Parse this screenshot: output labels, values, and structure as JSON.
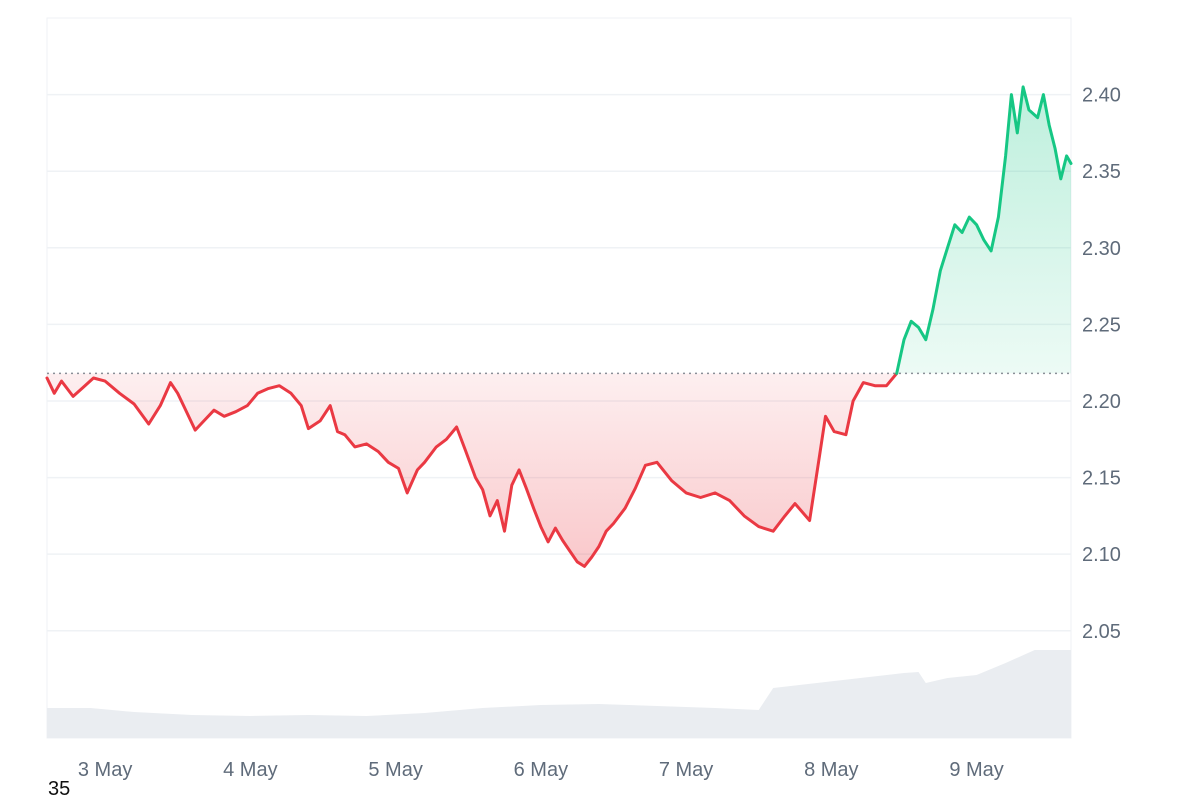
{
  "colors": {
    "up": "#16c784",
    "down": "#ea3943",
    "grid": "#eff2f5",
    "baseline": "#8a8f98",
    "volume": "#eaedf1",
    "tick_text": "#5f6b7a"
  },
  "corner_label": "35",
  "chart_data": {
    "type": "area",
    "baseline_value": 2.218,
    "ylim": [
      1.98,
      2.45
    ],
    "y_ticks": [
      2.05,
      2.1,
      2.15,
      2.2,
      2.25,
      2.3,
      2.35,
      2.4
    ],
    "y_tick_labels": [
      "2.05",
      "2.10",
      "2.15",
      "2.20",
      "2.25",
      "2.30",
      "2.35",
      "2.40"
    ],
    "xlim": [
      2.6,
      9.65
    ],
    "x_ticks": [
      3,
      4,
      5,
      6,
      7,
      8,
      9
    ],
    "x_tick_labels": [
      "3 May",
      "4 May",
      "5 May",
      "6 May",
      "7 May",
      "8 May",
      "9 May"
    ],
    "x_unit": "day of May",
    "series": [
      {
        "values": [
          [
            2.6,
            2.215
          ],
          [
            2.65,
            2.205
          ],
          [
            2.7,
            2.213
          ],
          [
            2.78,
            2.203
          ],
          [
            2.85,
            2.209
          ],
          [
            2.92,
            2.215
          ],
          [
            3.0,
            2.213
          ],
          [
            3.1,
            2.205
          ],
          [
            3.2,
            2.198
          ],
          [
            3.3,
            2.185
          ],
          [
            3.38,
            2.197
          ],
          [
            3.45,
            2.212
          ],
          [
            3.5,
            2.205
          ],
          [
            3.55,
            2.195
          ],
          [
            3.62,
            2.181
          ],
          [
            3.68,
            2.187
          ],
          [
            3.75,
            2.194
          ],
          [
            3.82,
            2.19
          ],
          [
            3.9,
            2.193
          ],
          [
            3.98,
            2.197
          ],
          [
            4.05,
            2.205
          ],
          [
            4.12,
            2.208
          ],
          [
            4.2,
            2.21
          ],
          [
            4.28,
            2.205
          ],
          [
            4.35,
            2.197
          ],
          [
            4.4,
            2.182
          ],
          [
            4.48,
            2.187
          ],
          [
            4.55,
            2.197
          ],
          [
            4.6,
            2.18
          ],
          [
            4.65,
            2.178
          ],
          [
            4.72,
            2.17
          ],
          [
            4.8,
            2.172
          ],
          [
            4.88,
            2.167
          ],
          [
            4.95,
            2.16
          ],
          [
            5.02,
            2.156
          ],
          [
            5.08,
            2.14
          ],
          [
            5.15,
            2.155
          ],
          [
            5.2,
            2.16
          ],
          [
            5.28,
            2.17
          ],
          [
            5.35,
            2.175
          ],
          [
            5.42,
            2.183
          ],
          [
            5.48,
            2.168
          ],
          [
            5.55,
            2.15
          ],
          [
            5.6,
            2.142
          ],
          [
            5.65,
            2.125
          ],
          [
            5.7,
            2.135
          ],
          [
            5.75,
            2.115
          ],
          [
            5.8,
            2.145
          ],
          [
            5.85,
            2.155
          ],
          [
            5.9,
            2.143
          ],
          [
            5.95,
            2.13
          ],
          [
            6.0,
            2.118
          ],
          [
            6.05,
            2.108
          ],
          [
            6.1,
            2.117
          ],
          [
            6.15,
            2.109
          ],
          [
            6.2,
            2.102
          ],
          [
            6.25,
            2.095
          ],
          [
            6.3,
            2.092
          ],
          [
            6.35,
            2.098
          ],
          [
            6.4,
            2.105
          ],
          [
            6.45,
            2.115
          ],
          [
            6.5,
            2.12
          ],
          [
            6.58,
            2.13
          ],
          [
            6.65,
            2.143
          ],
          [
            6.72,
            2.158
          ],
          [
            6.8,
            2.16
          ],
          [
            6.9,
            2.148
          ],
          [
            7.0,
            2.14
          ],
          [
            7.1,
            2.137
          ],
          [
            7.2,
            2.14
          ],
          [
            7.3,
            2.135
          ],
          [
            7.4,
            2.125
          ],
          [
            7.5,
            2.118
          ],
          [
            7.6,
            2.115
          ],
          [
            7.68,
            2.125
          ],
          [
            7.75,
            2.133
          ],
          [
            7.85,
            2.122
          ],
          [
            7.92,
            2.165
          ],
          [
            7.96,
            2.19
          ],
          [
            8.02,
            2.18
          ],
          [
            8.1,
            2.178
          ],
          [
            8.15,
            2.2
          ],
          [
            8.22,
            2.212
          ],
          [
            8.3,
            2.21
          ],
          [
            8.38,
            2.21
          ],
          [
            8.45,
            2.218
          ],
          [
            8.5,
            2.24
          ],
          [
            8.55,
            2.252
          ],
          [
            8.6,
            2.248
          ],
          [
            8.65,
            2.24
          ],
          [
            8.7,
            2.26
          ],
          [
            8.75,
            2.285
          ],
          [
            8.8,
            2.3
          ],
          [
            8.85,
            2.315
          ],
          [
            8.9,
            2.31
          ],
          [
            8.95,
            2.32
          ],
          [
            9.0,
            2.315
          ],
          [
            9.05,
            2.305
          ],
          [
            9.1,
            2.298
          ],
          [
            9.15,
            2.32
          ],
          [
            9.2,
            2.36
          ],
          [
            9.24,
            2.4
          ],
          [
            9.28,
            2.375
          ],
          [
            9.32,
            2.405
          ],
          [
            9.36,
            2.39
          ],
          [
            9.42,
            2.385
          ],
          [
            9.46,
            2.4
          ],
          [
            9.5,
            2.38
          ],
          [
            9.54,
            2.365
          ],
          [
            9.58,
            2.345
          ],
          [
            9.62,
            2.36
          ],
          [
            9.65,
            2.355
          ]
        ]
      }
    ],
    "volume": {
      "values": [
        [
          2.6,
          0.3
        ],
        [
          2.9,
          0.3
        ],
        [
          3.2,
          0.26
        ],
        [
          3.6,
          0.23
        ],
        [
          4.0,
          0.22
        ],
        [
          4.4,
          0.23
        ],
        [
          4.8,
          0.22
        ],
        [
          5.2,
          0.25
        ],
        [
          5.6,
          0.3
        ],
        [
          6.0,
          0.33
        ],
        [
          6.4,
          0.34
        ],
        [
          6.8,
          0.32
        ],
        [
          7.2,
          0.3
        ],
        [
          7.5,
          0.28
        ],
        [
          7.6,
          0.5
        ],
        [
          7.9,
          0.55
        ],
        [
          8.2,
          0.6
        ],
        [
          8.5,
          0.65
        ],
        [
          8.6,
          0.66
        ],
        [
          8.65,
          0.55
        ],
        [
          8.8,
          0.6
        ],
        [
          9.0,
          0.63
        ],
        [
          9.2,
          0.75
        ],
        [
          9.4,
          0.88
        ],
        [
          9.65,
          0.88
        ]
      ]
    }
  }
}
